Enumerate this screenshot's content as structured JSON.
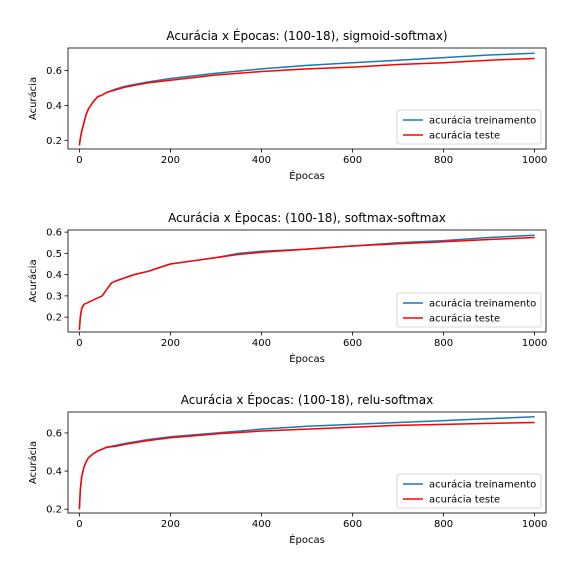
{
  "chart_data": [
    {
      "type": "line",
      "title": "Acurácia x Épocas: (100-18), sigmoid-softmax)",
      "xlabel": "Épocas",
      "ylabel": "Acurácia",
      "xlim": [
        -25,
        1025
      ],
      "ylim": [
        0.15,
        0.73
      ],
      "xticks": [
        0,
        200,
        400,
        600,
        800,
        1000
      ],
      "yticks": [
        0.2,
        0.4,
        0.6
      ],
      "ytick_labels": [
        "0.2",
        "0.4",
        "0.6"
      ],
      "legend_position": "lower-right",
      "series": [
        {
          "name": "acurácia treinamento",
          "color": "#1f77b4",
          "x": [
            0,
            2,
            5,
            10,
            15,
            20,
            30,
            40,
            50,
            60,
            80,
            100,
            150,
            200,
            250,
            300,
            400,
            500,
            600,
            700,
            800,
            900,
            1000
          ],
          "y": [
            0.17,
            0.21,
            0.25,
            0.3,
            0.35,
            0.38,
            0.42,
            0.45,
            0.46,
            0.475,
            0.495,
            0.51,
            0.535,
            0.555,
            0.57,
            0.585,
            0.61,
            0.63,
            0.645,
            0.66,
            0.675,
            0.69,
            0.7
          ]
        },
        {
          "name": "acurácia teste",
          "color": "#ff0000",
          "x": [
            0,
            2,
            5,
            10,
            15,
            20,
            30,
            40,
            50,
            60,
            80,
            100,
            150,
            200,
            250,
            300,
            400,
            500,
            600,
            700,
            800,
            900,
            1000
          ],
          "y": [
            0.17,
            0.21,
            0.25,
            0.3,
            0.35,
            0.38,
            0.42,
            0.45,
            0.46,
            0.475,
            0.49,
            0.505,
            0.53,
            0.545,
            0.56,
            0.575,
            0.595,
            0.61,
            0.62,
            0.635,
            0.645,
            0.66,
            0.67
          ]
        }
      ]
    },
    {
      "type": "line",
      "title": "Acurácia x Épocas: (100-18), softmax-softmax",
      "xlabel": "Épocas",
      "ylabel": "Acurácia",
      "xlim": [
        -25,
        1025
      ],
      "ylim": [
        0.13,
        0.61
      ],
      "xticks": [
        0,
        200,
        400,
        600,
        800,
        1000
      ],
      "yticks": [
        0.2,
        0.3,
        0.4,
        0.5,
        0.6
      ],
      "ytick_labels": [
        "0.2",
        "0.3",
        "0.4",
        "0.5",
        "0.6"
      ],
      "legend_position": "lower-right",
      "series": [
        {
          "name": "acurácia treinamento",
          "color": "#1f77b4",
          "x": [
            0,
            2,
            5,
            10,
            20,
            30,
            40,
            50,
            60,
            70,
            80,
            100,
            120,
            150,
            200,
            250,
            300,
            350,
            400,
            500,
            600,
            700,
            800,
            900,
            1000
          ],
          "y": [
            0.14,
            0.2,
            0.24,
            0.26,
            0.27,
            0.28,
            0.29,
            0.3,
            0.33,
            0.36,
            0.37,
            0.385,
            0.4,
            0.415,
            0.45,
            0.465,
            0.48,
            0.5,
            0.51,
            0.52,
            0.535,
            0.55,
            0.56,
            0.575,
            0.585
          ]
        },
        {
          "name": "acurácia teste",
          "color": "#ff0000",
          "x": [
            0,
            2,
            5,
            10,
            20,
            30,
            40,
            50,
            60,
            70,
            80,
            100,
            120,
            150,
            200,
            250,
            300,
            350,
            400,
            500,
            600,
            700,
            800,
            900,
            1000
          ],
          "y": [
            0.14,
            0.2,
            0.24,
            0.26,
            0.27,
            0.28,
            0.29,
            0.3,
            0.33,
            0.36,
            0.37,
            0.385,
            0.4,
            0.415,
            0.45,
            0.465,
            0.48,
            0.495,
            0.505,
            0.52,
            0.535,
            0.545,
            0.555,
            0.565,
            0.575
          ]
        }
      ]
    },
    {
      "type": "line",
      "title": "Acurácia x Épocas: (100-18), relu-softmax",
      "xlabel": "Épocas",
      "ylabel": "Acurácia",
      "xlim": [
        -25,
        1025
      ],
      "ylim": [
        0.18,
        0.71
      ],
      "xticks": [
        0,
        200,
        400,
        600,
        800,
        1000
      ],
      "yticks": [
        0.2,
        0.4,
        0.6
      ],
      "ytick_labels": [
        "0.2",
        "0.4",
        "0.6"
      ],
      "legend_position": "lower-right",
      "series": [
        {
          "name": "acurácia treinamento",
          "color": "#1f77b4",
          "x": [
            0,
            2,
            5,
            10,
            15,
            20,
            30,
            40,
            50,
            60,
            80,
            100,
            150,
            200,
            250,
            300,
            400,
            500,
            600,
            700,
            800,
            900,
            1000
          ],
          "y": [
            0.2,
            0.3,
            0.37,
            0.42,
            0.45,
            0.47,
            0.49,
            0.505,
            0.515,
            0.525,
            0.535,
            0.545,
            0.565,
            0.58,
            0.59,
            0.6,
            0.62,
            0.635,
            0.645,
            0.655,
            0.665,
            0.675,
            0.685
          ]
        },
        {
          "name": "acurácia teste",
          "color": "#ff0000",
          "x": [
            0,
            2,
            5,
            10,
            15,
            20,
            30,
            40,
            50,
            60,
            80,
            100,
            150,
            200,
            250,
            300,
            400,
            500,
            600,
            700,
            800,
            900,
            1000
          ],
          "y": [
            0.2,
            0.3,
            0.37,
            0.42,
            0.45,
            0.47,
            0.49,
            0.505,
            0.515,
            0.525,
            0.53,
            0.54,
            0.56,
            0.575,
            0.585,
            0.595,
            0.61,
            0.62,
            0.63,
            0.64,
            0.645,
            0.65,
            0.655
          ]
        }
      ]
    }
  ]
}
